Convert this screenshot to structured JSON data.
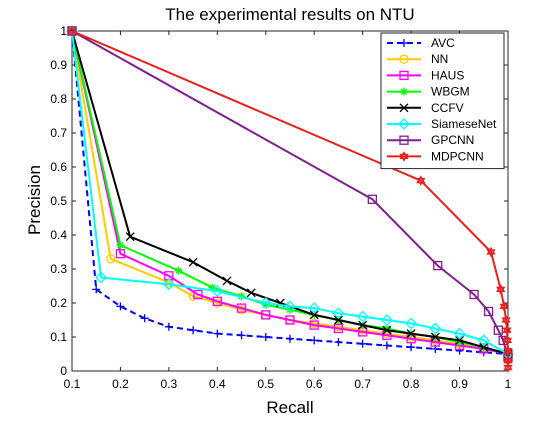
{
  "chart_data": {
    "type": "line",
    "title": "The experimental results on NTU",
    "xlabel": "Recall",
    "ylabel": "Precision",
    "xlim": [
      0.1,
      1
    ],
    "ylim": [
      0,
      1
    ],
    "xticks": [
      0.1,
      0.2,
      0.3,
      0.4,
      0.5,
      0.6,
      0.7,
      0.8,
      0.9,
      1
    ],
    "yticks": [
      0,
      0.1,
      0.2,
      0.3,
      0.4,
      0.5,
      0.6,
      0.7,
      0.8,
      0.9,
      1
    ],
    "xtick_labels": [
      "0.1",
      "0.2",
      "0.3",
      "0.4",
      "0.5",
      "0.6",
      "0.7",
      "0.8",
      "0.9",
      "1"
    ],
    "ytick_labels": [
      "0",
      "0.1",
      "0.2",
      "0.3",
      "0.4",
      "0.5",
      "0.6",
      "0.7",
      "0.8",
      "0.9",
      "1"
    ],
    "grid": false,
    "legend_position": "top-right",
    "series": [
      {
        "name": "AVC",
        "color": "#0000ff",
        "marker": "plus",
        "dashed": true,
        "points": [
          [
            0.1,
            1
          ],
          [
            0.15,
            0.24
          ],
          [
            0.2,
            0.19
          ],
          [
            0.25,
            0.155
          ],
          [
            0.3,
            0.13
          ],
          [
            0.35,
            0.12
          ],
          [
            0.4,
            0.11
          ],
          [
            0.45,
            0.105
          ],
          [
            0.5,
            0.1
          ],
          [
            0.55,
            0.095
          ],
          [
            0.6,
            0.09
          ],
          [
            0.65,
            0.085
          ],
          [
            0.7,
            0.08
          ],
          [
            0.75,
            0.075
          ],
          [
            0.8,
            0.07
          ],
          [
            0.85,
            0.065
          ],
          [
            0.9,
            0.06
          ],
          [
            0.95,
            0.055
          ],
          [
            1,
            0.05
          ]
        ]
      },
      {
        "name": "NN",
        "color": "#ffcc00",
        "marker": "circle",
        "dashed": false,
        "points": [
          [
            0.1,
            1
          ],
          [
            0.18,
            0.33
          ],
          [
            0.3,
            0.26
          ],
          [
            0.35,
            0.22
          ],
          [
            0.4,
            0.2
          ],
          [
            0.45,
            0.18
          ],
          [
            0.5,
            0.165
          ],
          [
            0.55,
            0.15
          ],
          [
            0.6,
            0.14
          ],
          [
            0.65,
            0.13
          ],
          [
            0.7,
            0.12
          ],
          [
            0.75,
            0.11
          ],
          [
            0.8,
            0.1
          ],
          [
            0.85,
            0.09
          ],
          [
            0.9,
            0.08
          ],
          [
            0.95,
            0.07
          ],
          [
            1,
            0.05
          ]
        ]
      },
      {
        "name": "HAUS",
        "color": "#ff00ff",
        "marker": "square",
        "dashed": false,
        "points": [
          [
            0.1,
            1
          ],
          [
            0.2,
            0.345
          ],
          [
            0.3,
            0.28
          ],
          [
            0.36,
            0.225
          ],
          [
            0.4,
            0.205
          ],
          [
            0.45,
            0.185
          ],
          [
            0.5,
            0.165
          ],
          [
            0.55,
            0.15
          ],
          [
            0.6,
            0.135
          ],
          [
            0.65,
            0.125
          ],
          [
            0.7,
            0.115
          ],
          [
            0.75,
            0.105
          ],
          [
            0.8,
            0.095
          ],
          [
            0.85,
            0.085
          ],
          [
            0.9,
            0.075
          ],
          [
            0.95,
            0.065
          ],
          [
            1,
            0.05
          ]
        ]
      },
      {
        "name": "WBGM",
        "color": "#00ff00",
        "marker": "asterisk",
        "dashed": false,
        "points": [
          [
            0.1,
            1
          ],
          [
            0.2,
            0.37
          ],
          [
            0.32,
            0.295
          ],
          [
            0.39,
            0.245
          ],
          [
            0.45,
            0.22
          ],
          [
            0.5,
            0.195
          ],
          [
            0.55,
            0.18
          ],
          [
            0.6,
            0.165
          ],
          [
            0.65,
            0.15
          ],
          [
            0.7,
            0.135
          ],
          [
            0.75,
            0.125
          ],
          [
            0.8,
            0.11
          ],
          [
            0.85,
            0.1
          ],
          [
            0.9,
            0.085
          ],
          [
            0.95,
            0.07
          ],
          [
            1,
            0.05
          ]
        ]
      },
      {
        "name": "CCFV",
        "color": "#000000",
        "marker": "x",
        "dashed": false,
        "points": [
          [
            0.1,
            1
          ],
          [
            0.22,
            0.395
          ],
          [
            0.35,
            0.32
          ],
          [
            0.42,
            0.265
          ],
          [
            0.47,
            0.23
          ],
          [
            0.53,
            0.2
          ],
          [
            0.6,
            0.165
          ],
          [
            0.65,
            0.15
          ],
          [
            0.7,
            0.135
          ],
          [
            0.75,
            0.12
          ],
          [
            0.8,
            0.11
          ],
          [
            0.85,
            0.1
          ],
          [
            0.9,
            0.09
          ],
          [
            0.95,
            0.07
          ],
          [
            1,
            0.05
          ]
        ]
      },
      {
        "name": "SiameseNet",
        "color": "#00ffff",
        "marker": "diamond",
        "dashed": false,
        "points": [
          [
            0.1,
            1
          ],
          [
            0.16,
            0.275
          ],
          [
            0.3,
            0.255
          ],
          [
            0.4,
            0.235
          ],
          [
            0.5,
            0.2
          ],
          [
            0.55,
            0.19
          ],
          [
            0.6,
            0.185
          ],
          [
            0.65,
            0.17
          ],
          [
            0.7,
            0.16
          ],
          [
            0.75,
            0.15
          ],
          [
            0.8,
            0.14
          ],
          [
            0.85,
            0.125
          ],
          [
            0.9,
            0.11
          ],
          [
            0.95,
            0.09
          ],
          [
            1,
            0.05
          ]
        ]
      },
      {
        "name": "GPCNN",
        "color": "#7f1f8f",
        "marker": "square",
        "dashed": false,
        "points": [
          [
            0.1,
            1
          ],
          [
            0.72,
            0.505
          ],
          [
            0.855,
            0.31
          ],
          [
            0.93,
            0.225
          ],
          [
            0.96,
            0.175
          ],
          [
            0.98,
            0.12
          ],
          [
            0.99,
            0.09
          ],
          [
            1,
            0.04
          ]
        ]
      },
      {
        "name": "MDPCNN",
        "color": "#e8201e",
        "marker": "hexagram",
        "dashed": false,
        "points": [
          [
            0.1,
            1
          ],
          [
            0.82,
            0.56
          ],
          [
            0.965,
            0.35
          ],
          [
            0.985,
            0.24
          ],
          [
            0.992,
            0.19
          ],
          [
            0.996,
            0.15
          ],
          [
            0.998,
            0.12
          ],
          [
            0.999,
            0.09
          ],
          [
            1,
            0.06
          ],
          [
            1,
            0.03
          ],
          [
            1,
            0.01
          ]
        ]
      }
    ]
  }
}
